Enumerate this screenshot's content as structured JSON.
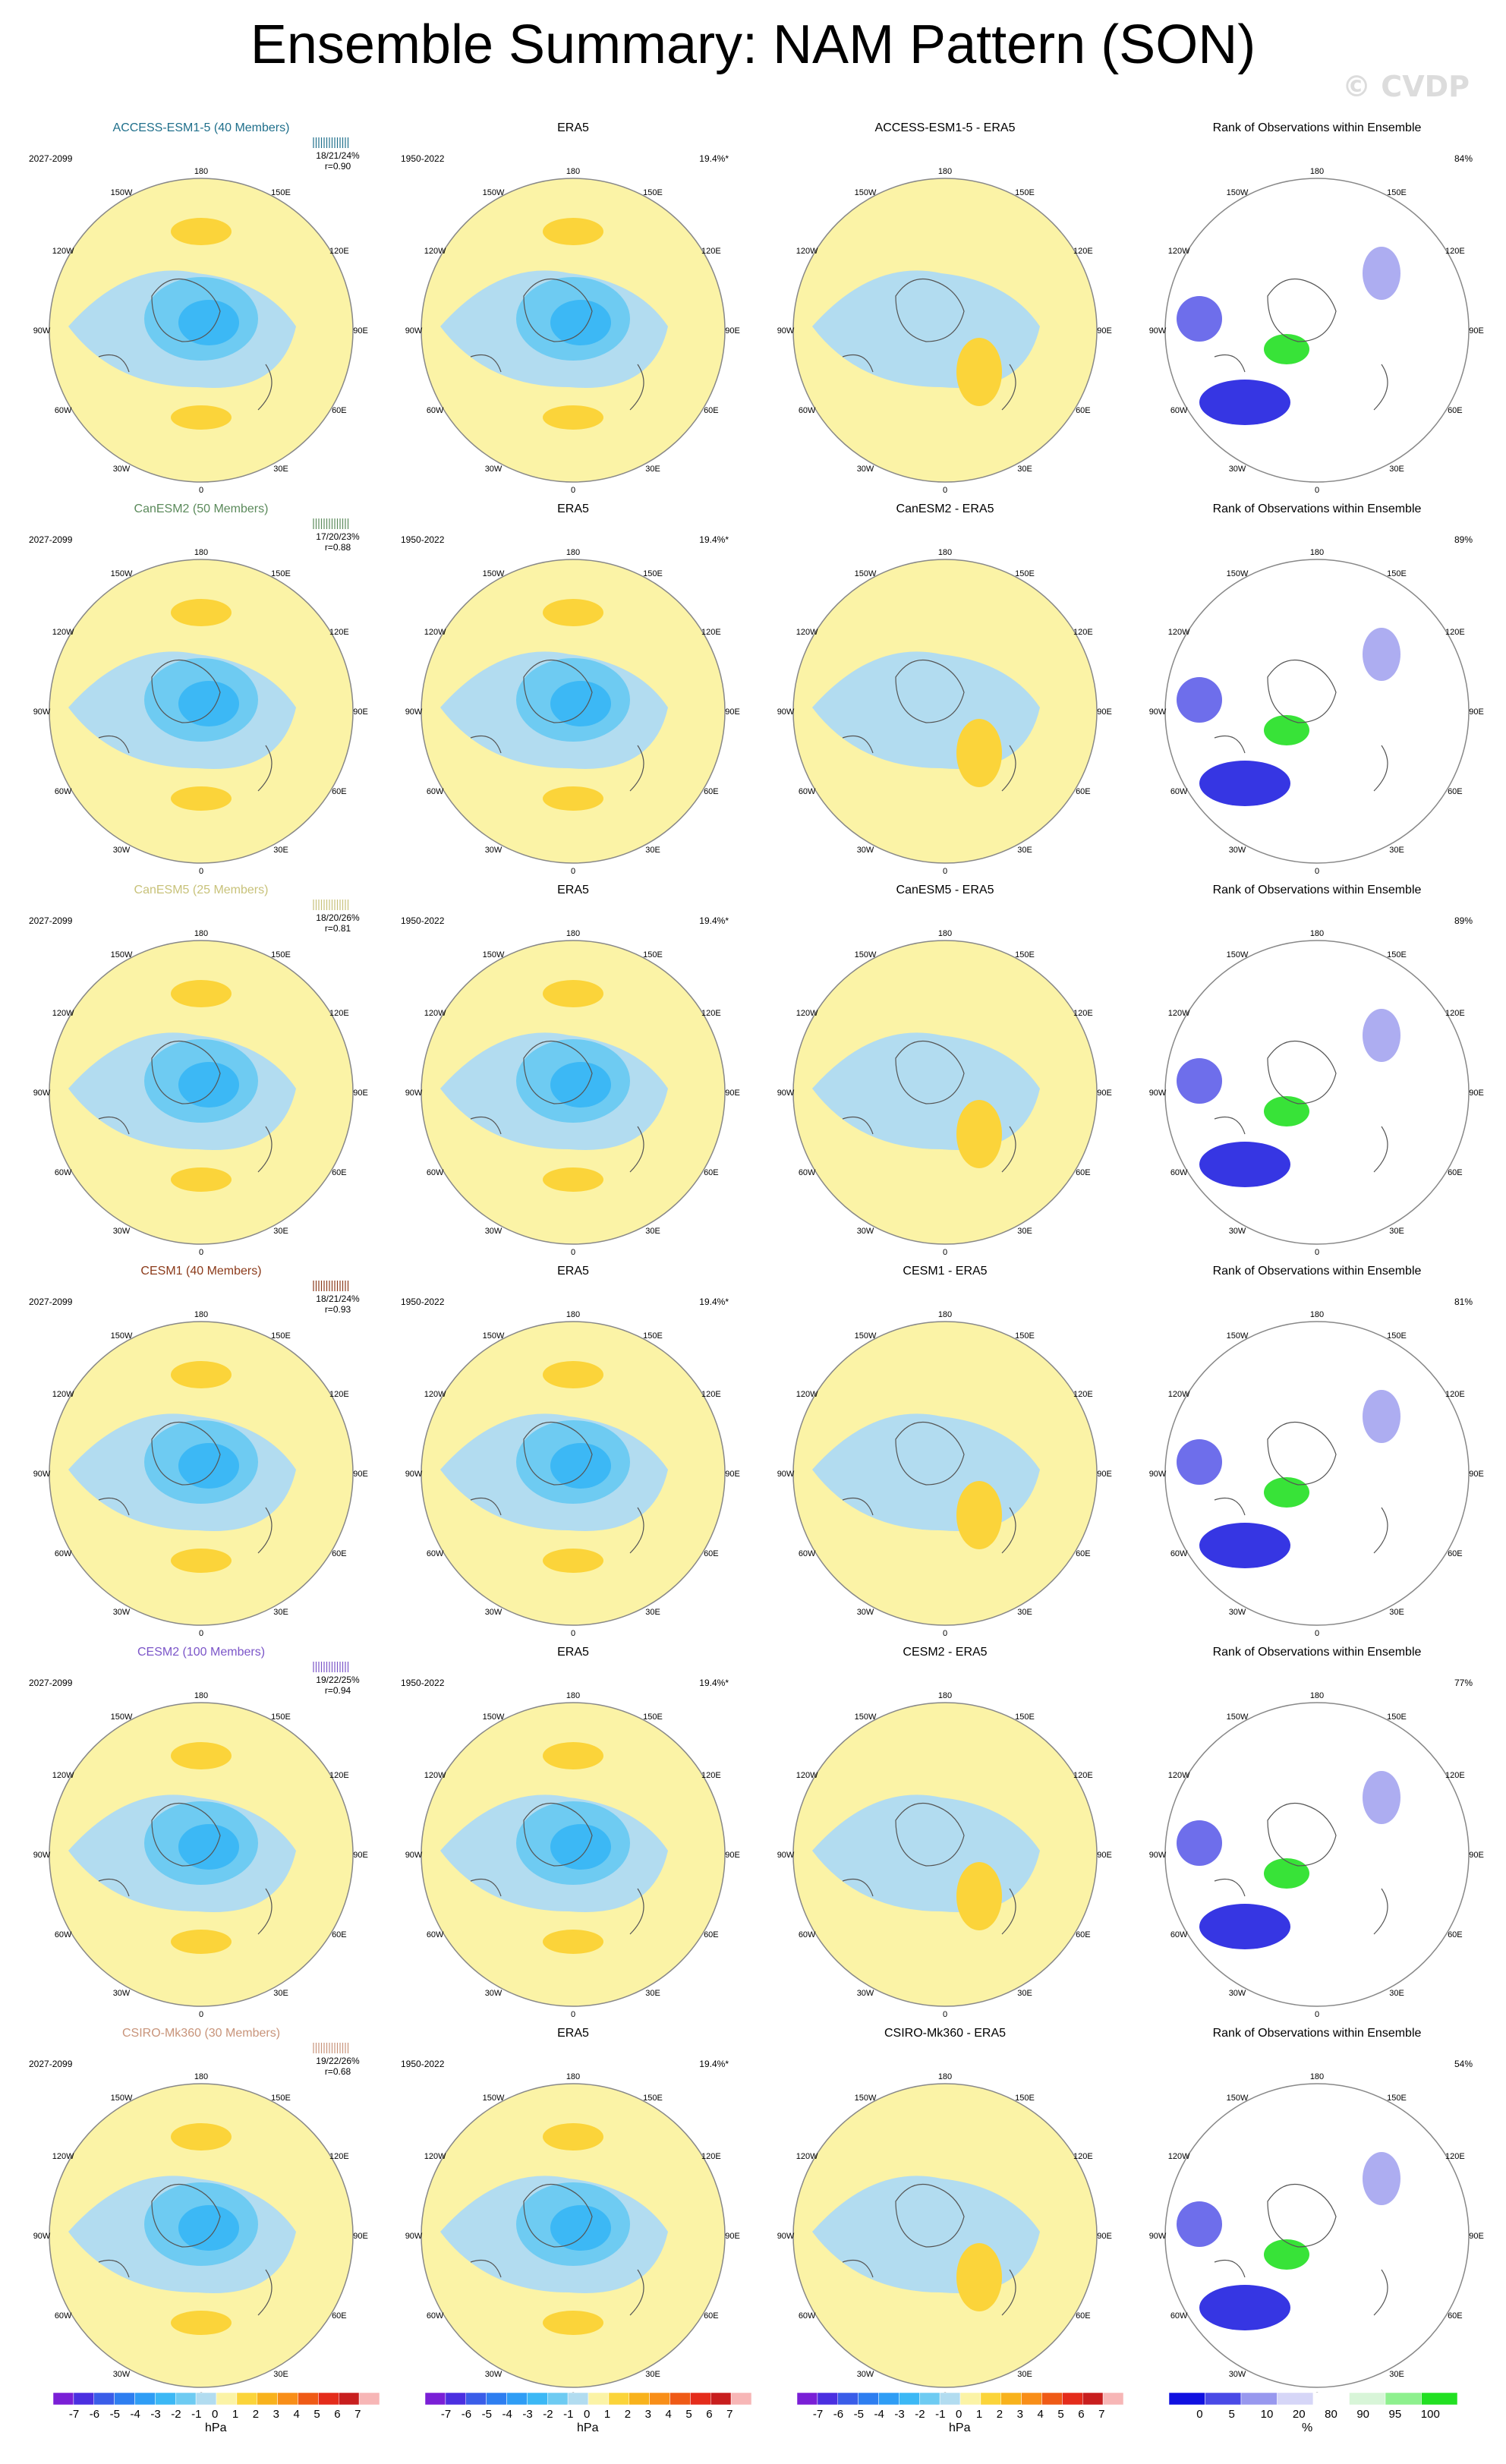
{
  "header": {
    "title": "Ensemble Summary: NAM Pattern (SON)",
    "watermark": "© CVDP"
  },
  "common": {
    "obs_title": "ERA5",
    "obs_period": "1950-2022",
    "obs_pct": "19.4%*",
    "model_period": "2027-2099",
    "rank_title": "Rank of Observations within Ensemble",
    "lon_labels": {
      "l180": "180",
      "l150w": "150W",
      "l150e": "150E",
      "l120w": "120W",
      "l120e": "120E",
      "l90w": "90W",
      "l90e": "90E",
      "l60w": "60W",
      "l60e": "60E",
      "l30w": "30W",
      "l30e": "30E",
      "l0": "0"
    }
  },
  "rows": [
    {
      "model_title": "ACCESS-ESM1-5 (40 Members)",
      "diff_title": "ACCESS-ESM1-5 - ERA5",
      "stats_line1": "18/21/24%",
      "stats_line2": "r=0.90",
      "rank_pct": "84%",
      "color": "#1f6f8b"
    },
    {
      "model_title": "CanESM2 (50 Members)",
      "diff_title": "CanESM2 - ERA5",
      "stats_line1": "17/20/23%",
      "stats_line2": "r=0.88",
      "rank_pct": "89%",
      "color": "#5b8a5b"
    },
    {
      "model_title": "CanESM5 (25 Members)",
      "diff_title": "CanESM5 - ERA5",
      "stats_line1": "18/20/26%",
      "stats_line2": "r=0.81",
      "rank_pct": "89%",
      "color": "#c8c27a"
    },
    {
      "model_title": "CESM1 (40 Members)",
      "diff_title": "CESM1 - ERA5",
      "stats_line1": "18/21/24%",
      "stats_line2": "r=0.93",
      "rank_pct": "81%",
      "color": "#8b3a1a"
    },
    {
      "model_title": "CESM2 (100 Members)",
      "diff_title": "CESM2 - ERA5",
      "stats_line1": "19/22/25%",
      "stats_line2": "r=0.94",
      "rank_pct": "77%",
      "color": "#7b55c8"
    },
    {
      "model_title": "CSIRO-Mk360 (30 Members)",
      "diff_title": "CSIRO-Mk360 - ERA5",
      "stats_line1": "19/22/26%",
      "stats_line2": "r=0.68",
      "rank_pct": "54%",
      "color": "#c8947a"
    }
  ],
  "colorbar_hpa": {
    "labels": [
      "-7",
      "-6",
      "-5",
      "-4",
      "-3",
      "-2",
      "-1",
      "0",
      "1",
      "2",
      "3",
      "4",
      "5",
      "6",
      "7"
    ],
    "colors": [
      "#7a1fd6",
      "#4b2fe0",
      "#3a5de8",
      "#2e7ef0",
      "#2f9df5",
      "#3cb8f5",
      "#6ecbf2",
      "#b2dcf0",
      "#fbf3a6",
      "#fbd43a",
      "#f8b21c",
      "#f88e18",
      "#ef5a16",
      "#e42c1b",
      "#c81e1e",
      "#f7b6b6"
    ],
    "unit": "hPa"
  },
  "colorbar_rank": {
    "labels": [
      "0",
      "5",
      "10",
      "20",
      "80",
      "90",
      "95",
      "100"
    ],
    "colors": [
      "#1010e0",
      "#4a4ae6",
      "#9898ee",
      "#d6d6f7",
      "#ffffff",
      "#d8f5d8",
      "#8ef08e",
      "#22e022"
    ],
    "unit": "%"
  }
}
